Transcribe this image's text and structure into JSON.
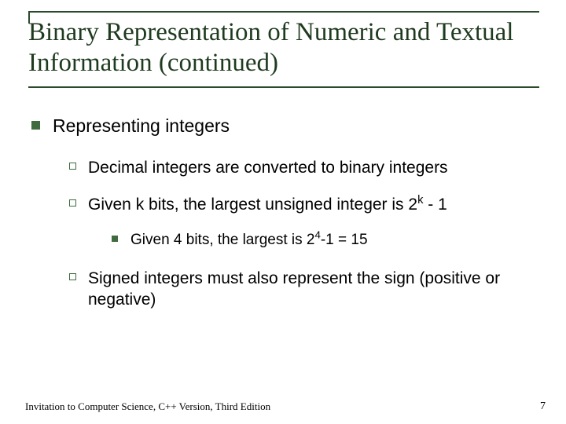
{
  "colors": {
    "accent": "#3f6b3f",
    "title": "#1f3b1f",
    "rule": "#2b4a2b",
    "background": "#ffffff"
  },
  "title": "Binary Representation of Numeric and Textual Information (continued)",
  "body": {
    "lv1": "Representing integers",
    "sub1": "Decimal integers are converted to binary integers",
    "sub2_pre": "Given k bits, the largest unsigned integer is 2",
    "sub2_exp": "k",
    "sub2_post": " - 1",
    "sub2a_pre": "Given 4 bits, the largest is 2",
    "sub2a_exp": "4",
    "sub2a_post": "-1 = 15",
    "sub3": "Signed integers must also represent the sign (positive or negative)"
  },
  "footer": "Invitation to Computer Science, C++ Version, Third Edition",
  "page": "7"
}
